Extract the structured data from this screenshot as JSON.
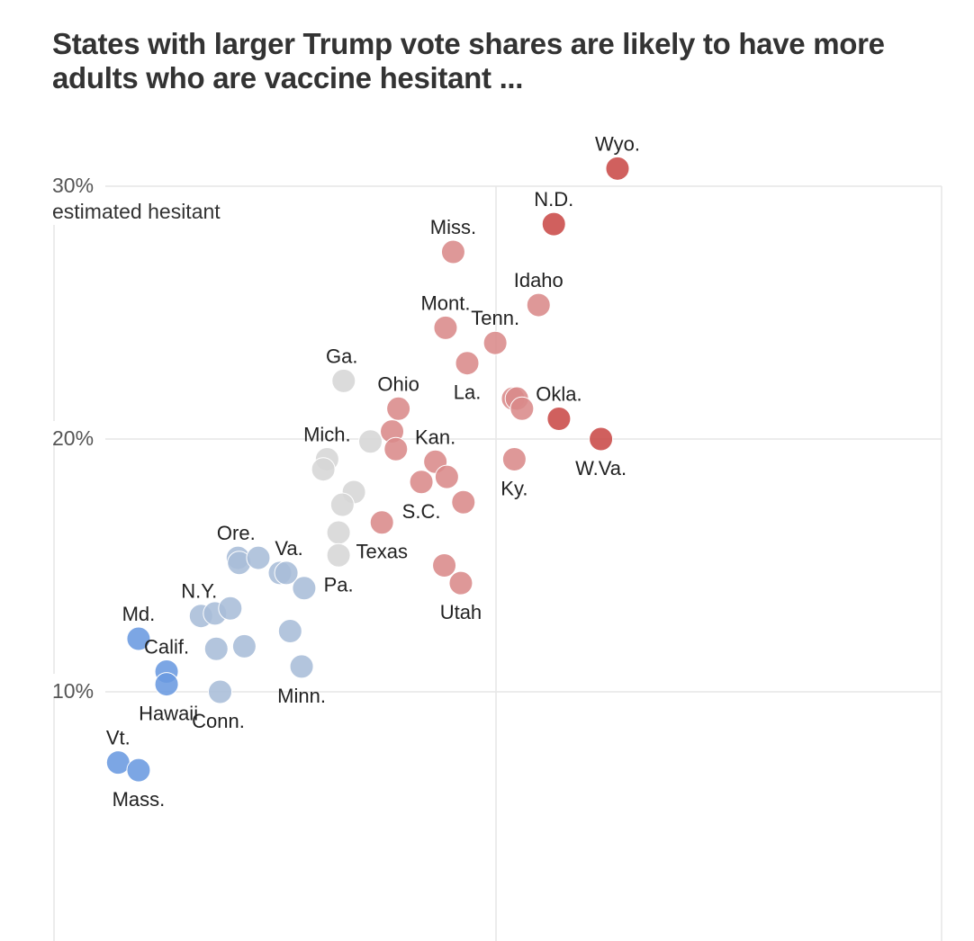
{
  "chart_data": {
    "type": "scatter",
    "title": "States with larger Trump vote shares are likely to have more adults who are vaccine hesitant ...",
    "ylabel": "estimated hesitant",
    "y_ticks": [
      "10%",
      "20%",
      "30%"
    ],
    "ylim": [
      0,
      30
    ],
    "xlim": [
      20,
      72
    ],
    "grid": true,
    "series": [
      {
        "name": "",
        "color": "#6a9ae0",
        "points": [
          {
            "label": "Md.",
            "x": 33.0,
            "y": 12.1
          },
          {
            "label": "Calif.",
            "x": 35.2,
            "y": 10.8
          },
          {
            "label": "Hawaii",
            "x": 35.2,
            "y": 10.3
          },
          {
            "label": "Vt.",
            "x": 31.4,
            "y": 7.2
          },
          {
            "label": "Mass.",
            "x": 33.0,
            "y": 6.9
          }
        ]
      },
      {
        "name": "",
        "color": "#a9bdd8",
        "points": [
          {
            "label": "N.Y.",
            "x": 37.9,
            "y": 13.0
          },
          {
            "label": "",
            "x": 39.0,
            "y": 13.1
          },
          {
            "label": "",
            "x": 40.2,
            "y": 13.3
          },
          {
            "label": "Ore.",
            "x": 40.8,
            "y": 15.3
          },
          {
            "label": "",
            "x": 40.9,
            "y": 15.1
          },
          {
            "label": "",
            "x": 42.4,
            "y": 15.3
          },
          {
            "label": "Va.",
            "x": 44.1,
            "y": 14.7
          },
          {
            "label": "",
            "x": 44.6,
            "y": 14.7
          },
          {
            "label": "",
            "x": 46.0,
            "y": 14.1
          },
          {
            "label": "",
            "x": 39.1,
            "y": 11.7
          },
          {
            "label": "",
            "x": 41.3,
            "y": 11.8
          },
          {
            "label": "Conn.",
            "x": 39.4,
            "y": 10.0
          },
          {
            "label": "",
            "x": 44.9,
            "y": 12.4
          },
          {
            "label": "Minn.",
            "x": 45.8,
            "y": 11.0
          }
        ]
      },
      {
        "name": "",
        "color": "#d6d6d6",
        "points": [
          {
            "label": "Ga.",
            "x": 49.1,
            "y": 22.3
          },
          {
            "label": "Mich.",
            "x": 47.8,
            "y": 19.2
          },
          {
            "label": "",
            "x": 47.5,
            "y": 18.8
          },
          {
            "label": "",
            "x": 51.2,
            "y": 19.9
          },
          {
            "label": "",
            "x": 49.9,
            "y": 17.9
          },
          {
            "label": "",
            "x": 49.0,
            "y": 17.4
          },
          {
            "label": "",
            "x": 48.7,
            "y": 16.3
          },
          {
            "label": "Pa.",
            "x": 48.7,
            "y": 15.4
          }
        ]
      },
      {
        "name": "",
        "color": "#d98a8a",
        "points": [
          {
            "label": "Miss.",
            "x": 57.7,
            "y": 27.4
          },
          {
            "label": "Mont.",
            "x": 57.1,
            "y": 24.4
          },
          {
            "label": "Tenn.",
            "x": 61.0,
            "y": 23.8
          },
          {
            "label": "Idaho",
            "x": 64.4,
            "y": 25.3
          },
          {
            "label": "La.",
            "x": 58.8,
            "y": 23.0
          },
          {
            "label": "Ohio",
            "x": 53.4,
            "y": 21.2
          },
          {
            "label": "",
            "x": 52.9,
            "y": 20.3
          },
          {
            "label": "",
            "x": 53.2,
            "y": 19.6
          },
          {
            "label": "",
            "x": 62.4,
            "y": 21.6
          },
          {
            "label": "",
            "x": 62.7,
            "y": 21.6
          },
          {
            "label": "",
            "x": 63.1,
            "y": 21.2
          },
          {
            "label": "Kan.",
            "x": 56.3,
            "y": 19.1
          },
          {
            "label": "",
            "x": 57.2,
            "y": 18.5
          },
          {
            "label": "S.C.",
            "x": 55.2,
            "y": 18.3
          },
          {
            "label": "",
            "x": 58.5,
            "y": 17.5
          },
          {
            "label": "Ky.",
            "x": 62.5,
            "y": 19.2
          },
          {
            "label": "Texas",
            "x": 52.1,
            "y": 16.7
          },
          {
            "label": "",
            "x": 57.0,
            "y": 15.0
          },
          {
            "label": "Utah",
            "x": 58.3,
            "y": 14.3
          }
        ]
      },
      {
        "name": "",
        "color": "#c94a48",
        "points": [
          {
            "label": "Wyo.",
            "x": 70.6,
            "y": 30.7
          },
          {
            "label": "N.D.",
            "x": 65.6,
            "y": 28.5
          },
          {
            "label": "Okla.",
            "x": 66.0,
            "y": 20.8
          },
          {
            "label": "W.Va.",
            "x": 69.3,
            "y": 20.0
          }
        ]
      }
    ]
  }
}
